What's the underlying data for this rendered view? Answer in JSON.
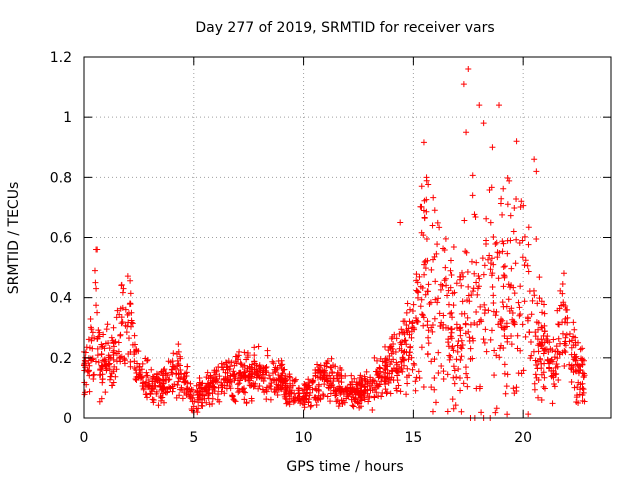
{
  "chart_data": {
    "type": "scatter",
    "title": "Day 277 of 2019, SRMTID for receiver vars",
    "xlabel": "GPS time / hours",
    "ylabel": "SRMTID / TECUs",
    "xlim": [
      0,
      24
    ],
    "ylim": [
      0,
      1.2
    ],
    "xticks": [
      0,
      5,
      10,
      15,
      20
    ],
    "xtick_labels": [
      "0",
      "5",
      "10",
      "15",
      "20"
    ],
    "yticks": [
      0,
      0.2,
      0.4,
      0.6,
      0.8,
      1,
      1.2
    ],
    "ytick_labels": [
      "0",
      "0.2",
      "0.4",
      "0.6",
      "0.8",
      "1",
      "1.2"
    ],
    "grid": true,
    "marker": "+",
    "series_color": "#ff0000",
    "profile": [
      [
        0.0,
        0.16
      ],
      [
        0.3,
        0.2
      ],
      [
        0.5,
        0.28
      ],
      [
        0.8,
        0.18
      ],
      [
        1.2,
        0.2
      ],
      [
        1.7,
        0.28
      ],
      [
        2.1,
        0.3
      ],
      [
        2.5,
        0.14
      ],
      [
        3.5,
        0.1
      ],
      [
        4.2,
        0.16
      ],
      [
        4.6,
        0.12
      ],
      [
        5.0,
        0.06
      ],
      [
        6.0,
        0.12
      ],
      [
        7.0,
        0.14
      ],
      [
        8.0,
        0.14
      ],
      [
        9.0,
        0.13
      ],
      [
        9.5,
        0.08
      ],
      [
        10.2,
        0.09
      ],
      [
        11.0,
        0.14
      ],
      [
        12.0,
        0.08
      ],
      [
        13.0,
        0.1
      ],
      [
        13.8,
        0.16
      ],
      [
        14.4,
        0.2
      ],
      [
        15.0,
        0.3
      ],
      [
        15.5,
        0.45
      ],
      [
        16.0,
        0.42
      ],
      [
        16.8,
        0.3
      ],
      [
        17.3,
        0.3
      ],
      [
        17.7,
        0.4
      ],
      [
        18.2,
        0.35
      ],
      [
        18.8,
        0.42
      ],
      [
        19.5,
        0.4
      ],
      [
        20.0,
        0.42
      ],
      [
        20.5,
        0.3
      ],
      [
        21.0,
        0.2
      ],
      [
        21.4,
        0.18
      ],
      [
        21.8,
        0.34
      ],
      [
        22.3,
        0.22
      ],
      [
        22.8,
        0.12
      ]
    ],
    "notable_points": [
      [
        0.55,
        0.56
      ],
      [
        0.6,
        0.56
      ],
      [
        0.5,
        0.49
      ],
      [
        0.52,
        0.45
      ],
      [
        0.55,
        0.43
      ],
      [
        1.8,
        0.43
      ],
      [
        4.9,
        0.03
      ],
      [
        5.0,
        0.02
      ],
      [
        14.4,
        0.65
      ],
      [
        15.6,
        0.8
      ],
      [
        17.5,
        1.16
      ],
      [
        17.3,
        1.11
      ],
      [
        17.4,
        0.95
      ],
      [
        18.0,
        1.04
      ],
      [
        18.2,
        0.98
      ],
      [
        18.9,
        1.04
      ],
      [
        18.6,
        0.9
      ],
      [
        19.7,
        0.92
      ],
      [
        17.7,
        0.74
      ],
      [
        17.6,
        0.0
      ],
      [
        17.8,
        0.0
      ],
      [
        18.2,
        0.0
      ],
      [
        18.5,
        0.0
      ],
      [
        20.5,
        0.86
      ],
      [
        20.6,
        0.82
      ],
      [
        22.5,
        0.05
      ]
    ],
    "point_count": 1800
  }
}
